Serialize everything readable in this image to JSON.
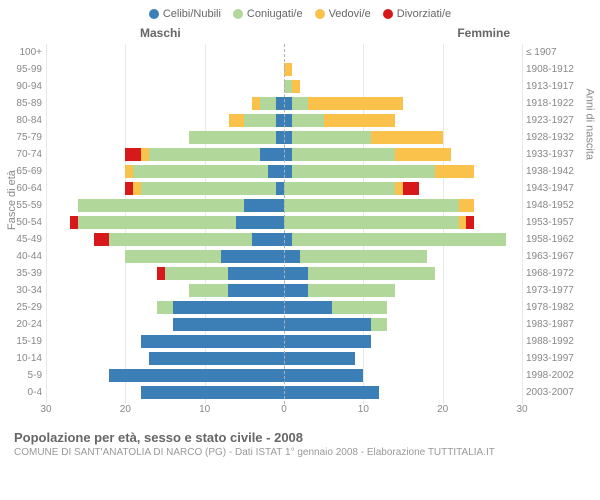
{
  "legend": [
    {
      "label": "Celibi/Nubili",
      "color": "#3b7fb6"
    },
    {
      "label": "Coniugati/e",
      "color": "#b1d79a"
    },
    {
      "label": "Vedovi/e",
      "color": "#fac14b"
    },
    {
      "label": "Divorziati/e",
      "color": "#d7191c"
    }
  ],
  "gender_left": "Maschi",
  "gender_right": "Femmine",
  "y_title_left": "Fasce di età",
  "y_title_right": "Anni di nascita",
  "footer_title": "Popolazione per età, sesso e stato civile - 2008",
  "footer_sub": "COMUNE DI SANT'ANATOLIA DI NARCO (PG) - Dati ISTAT 1° gennaio 2008 - Elaborazione TUTTITALIA.IT",
  "x_ticks_left": [
    30,
    20,
    10,
    0
  ],
  "x_ticks_right": [
    0,
    10,
    20,
    30
  ],
  "x_max": 30,
  "chart": {
    "colors": {
      "celibi": "#3b7fb6",
      "coniugati": "#b1d79a",
      "vedovi": "#fac14b",
      "divorziati": "#d7191c"
    },
    "rows": [
      {
        "age": "100+",
        "birth": "≤ 1907",
        "m": {
          "c": 0,
          "co": 0,
          "v": 0,
          "d": 0
        },
        "f": {
          "c": 0,
          "co": 0,
          "v": 0,
          "d": 0
        }
      },
      {
        "age": "95-99",
        "birth": "1908-1912",
        "m": {
          "c": 0,
          "co": 0,
          "v": 0,
          "d": 0
        },
        "f": {
          "c": 0,
          "co": 0,
          "v": 1,
          "d": 0
        }
      },
      {
        "age": "90-94",
        "birth": "1913-1917",
        "m": {
          "c": 0,
          "co": 0,
          "v": 0,
          "d": 0
        },
        "f": {
          "c": 0,
          "co": 1,
          "v": 1,
          "d": 0
        }
      },
      {
        "age": "85-89",
        "birth": "1918-1922",
        "m": {
          "c": 1,
          "co": 2,
          "v": 1,
          "d": 0
        },
        "f": {
          "c": 1,
          "co": 2,
          "v": 12,
          "d": 0
        }
      },
      {
        "age": "80-84",
        "birth": "1923-1927",
        "m": {
          "c": 1,
          "co": 4,
          "v": 2,
          "d": 0
        },
        "f": {
          "c": 1,
          "co": 4,
          "v": 9,
          "d": 0
        }
      },
      {
        "age": "75-79",
        "birth": "1928-1932",
        "m": {
          "c": 1,
          "co": 11,
          "v": 0,
          "d": 0
        },
        "f": {
          "c": 1,
          "co": 10,
          "v": 9,
          "d": 0
        }
      },
      {
        "age": "70-74",
        "birth": "1933-1937",
        "m": {
          "c": 3,
          "co": 14,
          "v": 1,
          "d": 2
        },
        "f": {
          "c": 1,
          "co": 13,
          "v": 7,
          "d": 0
        }
      },
      {
        "age": "65-69",
        "birth": "1938-1942",
        "m": {
          "c": 2,
          "co": 17,
          "v": 1,
          "d": 0
        },
        "f": {
          "c": 1,
          "co": 18,
          "v": 5,
          "d": 0
        }
      },
      {
        "age": "60-64",
        "birth": "1943-1947",
        "m": {
          "c": 1,
          "co": 17,
          "v": 1,
          "d": 1
        },
        "f": {
          "c": 0,
          "co": 14,
          "v": 1,
          "d": 2
        }
      },
      {
        "age": "55-59",
        "birth": "1948-1952",
        "m": {
          "c": 5,
          "co": 21,
          "v": 0,
          "d": 0
        },
        "f": {
          "c": 0,
          "co": 22,
          "v": 2,
          "d": 0
        }
      },
      {
        "age": "50-54",
        "birth": "1953-1957",
        "m": {
          "c": 6,
          "co": 20,
          "v": 0,
          "d": 1
        },
        "f": {
          "c": 0,
          "co": 22,
          "v": 1,
          "d": 1
        }
      },
      {
        "age": "45-49",
        "birth": "1958-1962",
        "m": {
          "c": 4,
          "co": 18,
          "v": 0,
          "d": 2
        },
        "f": {
          "c": 1,
          "co": 27,
          "v": 0,
          "d": 0
        }
      },
      {
        "age": "40-44",
        "birth": "1963-1967",
        "m": {
          "c": 8,
          "co": 12,
          "v": 0,
          "d": 0
        },
        "f": {
          "c": 2,
          "co": 16,
          "v": 0,
          "d": 0
        }
      },
      {
        "age": "35-39",
        "birth": "1968-1972",
        "m": {
          "c": 7,
          "co": 8,
          "v": 0,
          "d": 1
        },
        "f": {
          "c": 3,
          "co": 16,
          "v": 0,
          "d": 0
        }
      },
      {
        "age": "30-34",
        "birth": "1973-1977",
        "m": {
          "c": 7,
          "co": 5,
          "v": 0,
          "d": 0
        },
        "f": {
          "c": 3,
          "co": 11,
          "v": 0,
          "d": 0
        }
      },
      {
        "age": "25-29",
        "birth": "1978-1982",
        "m": {
          "c": 14,
          "co": 2,
          "v": 0,
          "d": 0
        },
        "f": {
          "c": 6,
          "co": 7,
          "v": 0,
          "d": 0
        }
      },
      {
        "age": "20-24",
        "birth": "1983-1987",
        "m": {
          "c": 14,
          "co": 0,
          "v": 0,
          "d": 0
        },
        "f": {
          "c": 11,
          "co": 2,
          "v": 0,
          "d": 0
        }
      },
      {
        "age": "15-19",
        "birth": "1988-1992",
        "m": {
          "c": 18,
          "co": 0,
          "v": 0,
          "d": 0
        },
        "f": {
          "c": 11,
          "co": 0,
          "v": 0,
          "d": 0
        }
      },
      {
        "age": "10-14",
        "birth": "1993-1997",
        "m": {
          "c": 17,
          "co": 0,
          "v": 0,
          "d": 0
        },
        "f": {
          "c": 9,
          "co": 0,
          "v": 0,
          "d": 0
        }
      },
      {
        "age": "5-9",
        "birth": "1998-2002",
        "m": {
          "c": 22,
          "co": 0,
          "v": 0,
          "d": 0
        },
        "f": {
          "c": 10,
          "co": 0,
          "v": 0,
          "d": 0
        }
      },
      {
        "age": "0-4",
        "birth": "2003-2007",
        "m": {
          "c": 18,
          "co": 0,
          "v": 0,
          "d": 0
        },
        "f": {
          "c": 12,
          "co": 0,
          "v": 0,
          "d": 0
        }
      }
    ]
  }
}
